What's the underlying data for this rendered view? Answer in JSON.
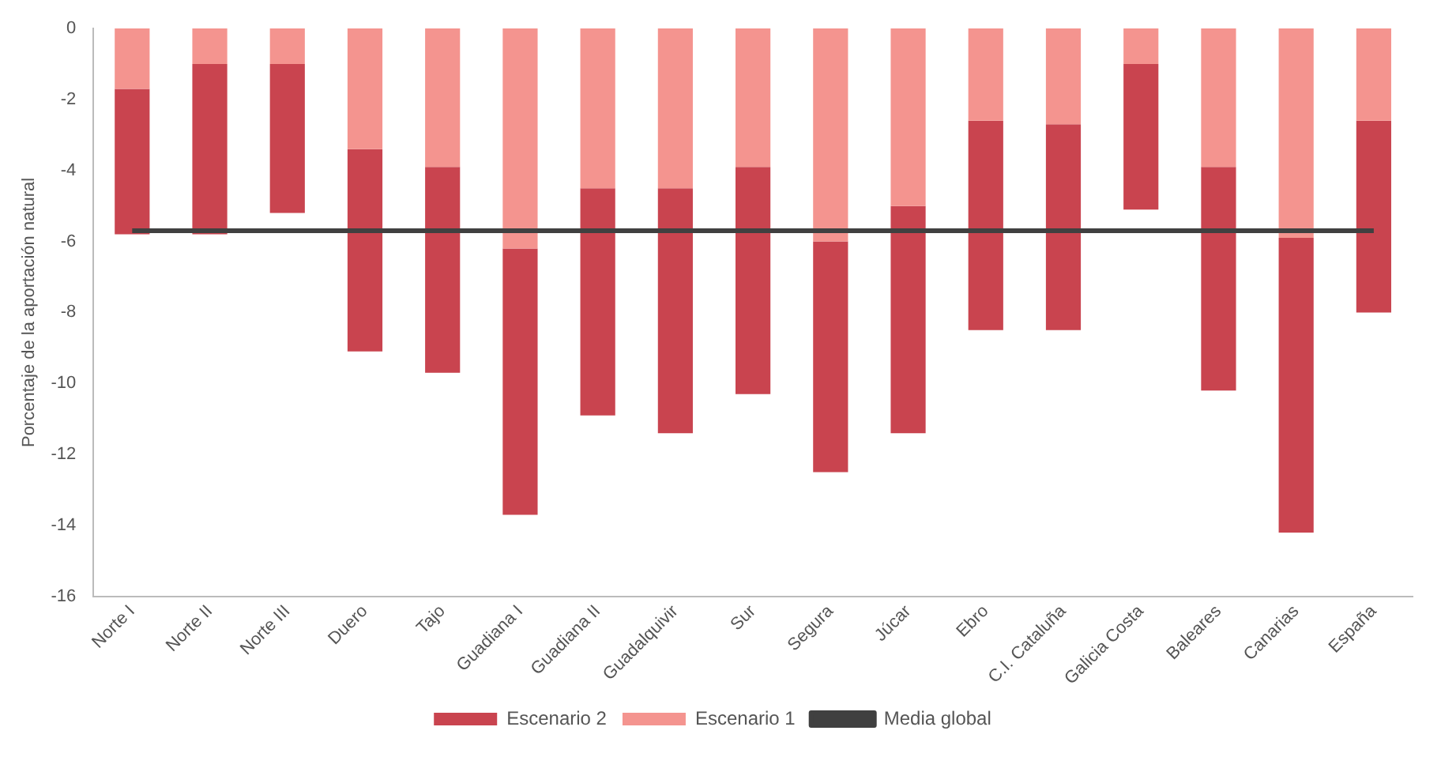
{
  "chart_data": {
    "type": "bar",
    "stacked": true,
    "ylabel": "Porcentaje de la aportación natural",
    "categories": [
      "Norte I",
      "Norte II",
      "Norte III",
      "Duero",
      "Tajo",
      "Guadiana I",
      "Guadiana II",
      "Guadalquivir",
      "Sur",
      "Segura",
      "Júcar",
      "Ebro",
      "C.I. Cataluña",
      "Galicia Costa",
      "Baleares",
      "Canarias",
      "España"
    ],
    "series": [
      {
        "name": "Escenario 1",
        "color": "#f4948f",
        "values": [
          -1.7,
          -1.0,
          -1.0,
          -3.4,
          -3.9,
          -6.2,
          -4.5,
          -4.5,
          -3.9,
          -6.0,
          -5.0,
          -2.6,
          -2.7,
          -1.0,
          -3.9,
          -5.9,
          -2.6
        ]
      },
      {
        "name": "Escenario 2",
        "color": "#c9444f",
        "values": [
          -4.1,
          -4.8,
          -4.2,
          -5.7,
          -5.8,
          -7.5,
          -6.4,
          -6.9,
          -6.4,
          -6.5,
          -6.4,
          -5.9,
          -5.8,
          -4.1,
          -6.3,
          -8.3,
          -5.4
        ]
      },
      {
        "name": "Media global",
        "type": "line",
        "color": "#404040",
        "marker": "none",
        "values": [
          -5.7,
          -5.7,
          -5.7,
          -5.7,
          -5.7,
          -5.7,
          -5.7,
          -5.7,
          -5.7,
          -5.7,
          -5.7,
          -5.7,
          -5.7,
          -5.7,
          -5.7,
          -5.7,
          -5.7
        ]
      }
    ],
    "ylim": [
      -16,
      0
    ],
    "yticks": [
      0,
      -2,
      -4,
      -6,
      -8,
      -10,
      -12,
      -14,
      -16
    ],
    "grid": false,
    "legend": "bottom"
  }
}
